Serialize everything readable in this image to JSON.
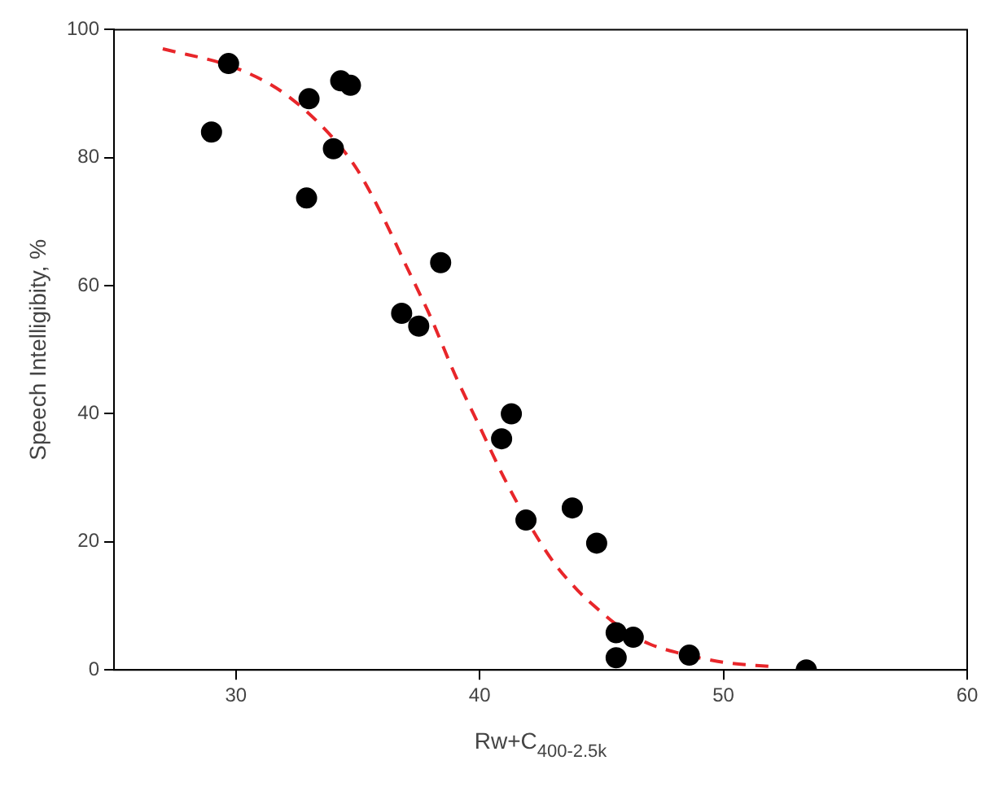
{
  "chart_data": {
    "type": "scatter",
    "xlabel": "Rw+C$_{400-2.5k}$",
    "ylabel": "Speech Intelligibity, %",
    "xlim": [
      25,
      60
    ],
    "xticks": [
      30,
      40,
      50,
      60
    ],
    "ylim": [
      0,
      100
    ],
    "yticks": [
      0,
      20,
      40,
      60,
      80,
      100
    ],
    "grid": false,
    "legend": false,
    "marker": "circle",
    "series": [
      {
        "color": "#000000",
        "x": [
          29.0,
          29.7,
          32.9,
          33.0,
          34.0,
          34.3,
          34.7,
          36.8,
          37.5,
          38.4,
          40.9,
          41.3,
          41.9,
          43.8,
          44.8,
          45.6,
          46.3,
          45.6,
          48.6,
          53.4
        ],
        "values": [
          84,
          94.7,
          73.7,
          89.2,
          81.4,
          92,
          91.3,
          55.7,
          53.7,
          63.6,
          36.1,
          40,
          23.4,
          25.3,
          19.8,
          5.8,
          5.1,
          1.9,
          2.3,
          0
        ]
      },
      {
        "type": "line",
        "color": "#e8262a",
        "line_style": "dashed",
        "marker": "none",
        "x": [
          27,
          30,
          32,
          34,
          35,
          36,
          37,
          38,
          39,
          40,
          41,
          42,
          43,
          44,
          45,
          46,
          47,
          48,
          50,
          52
        ],
        "values": [
          97,
          94,
          90,
          83,
          78,
          71,
          63,
          55,
          46,
          38,
          30,
          23,
          17,
          12.5,
          9,
          6,
          4,
          2.8,
          1.2,
          0.5
        ]
      }
    ]
  }
}
